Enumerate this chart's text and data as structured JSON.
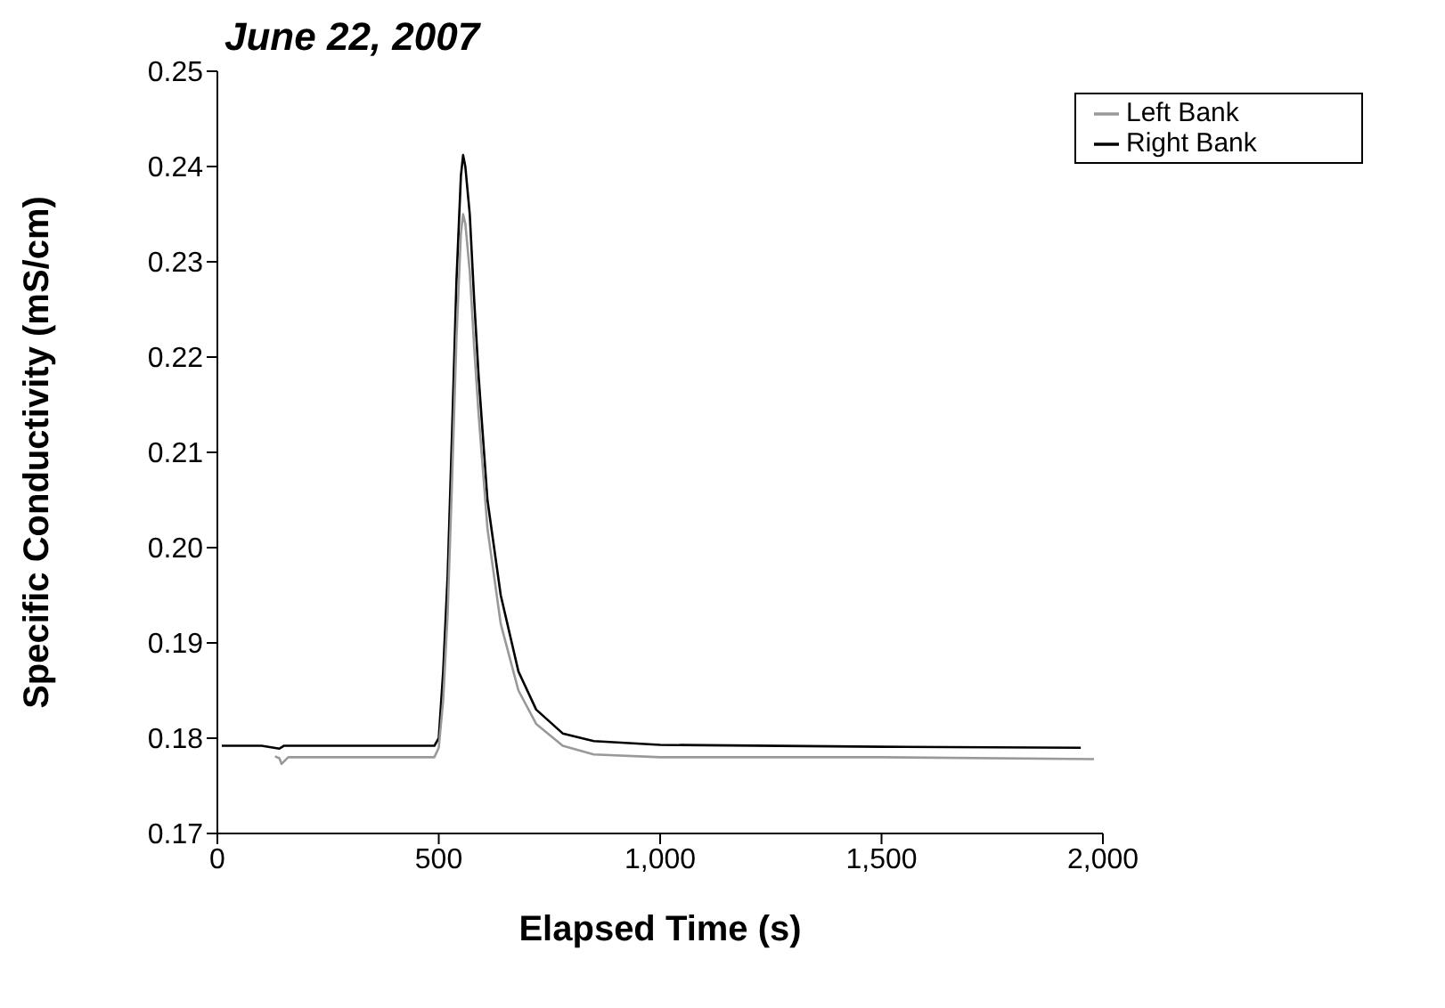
{
  "chart_data": {
    "type": "line",
    "title": "June 22, 2007",
    "xlabel": "Elapsed Time (s)",
    "ylabel": "Specific Conductivity (mS/cm)",
    "xlim": [
      0,
      2000
    ],
    "xticks": [
      {
        "value": 0,
        "label": "0"
      },
      {
        "value": 500,
        "label": "500"
      },
      {
        "value": 1000,
        "label": "1,000"
      },
      {
        "value": 1500,
        "label": "1,500"
      },
      {
        "value": 2000,
        "label": "2,000"
      }
    ],
    "ylim": [
      0.17,
      0.25
    ],
    "yticks": [
      {
        "value": 0.17,
        "label": "0.17"
      },
      {
        "value": 0.18,
        "label": "0.18"
      },
      {
        "value": 0.19,
        "label": "0.19"
      },
      {
        "value": 0.2,
        "label": "0.20"
      },
      {
        "value": 0.21,
        "label": "0.21"
      },
      {
        "value": 0.22,
        "label": "0.22"
      },
      {
        "value": 0.23,
        "label": "0.23"
      },
      {
        "value": 0.24,
        "label": "0.24"
      },
      {
        "value": 0.25,
        "label": "0.25"
      }
    ],
    "grid": false,
    "legend": "top right",
    "marker": "none",
    "line_style": "solid",
    "series": [
      {
        "name": "Right Bank",
        "color": "#000000",
        "x": [
          10,
          100,
          140,
          150,
          300,
          490,
          500,
          510,
          520,
          530,
          540,
          550,
          555,
          560,
          570,
          580,
          590,
          610,
          640,
          680,
          720,
          780,
          850,
          1000,
          1500,
          1950
        ],
        "values": [
          0.1792,
          0.1792,
          0.1789,
          0.1792,
          0.1792,
          0.1792,
          0.18,
          0.187,
          0.197,
          0.212,
          0.228,
          0.239,
          0.2412,
          0.24,
          0.235,
          0.226,
          0.218,
          0.205,
          0.195,
          0.187,
          0.183,
          0.1805,
          0.1797,
          0.1793,
          0.1791,
          0.179
        ]
      },
      {
        "name": "Left Bank",
        "color": "#999999",
        "x": [
          130,
          140,
          145,
          160,
          300,
          490,
          500,
          510,
          520,
          530,
          540,
          550,
          555,
          560,
          570,
          580,
          590,
          610,
          640,
          680,
          720,
          780,
          850,
          1000,
          1500,
          1980
        ],
        "values": [
          0.1781,
          0.1779,
          0.1773,
          0.178,
          0.178,
          0.178,
          0.179,
          0.184,
          0.193,
          0.207,
          0.222,
          0.233,
          0.235,
          0.234,
          0.229,
          0.221,
          0.214,
          0.202,
          0.192,
          0.185,
          0.1815,
          0.1792,
          0.1783,
          0.178,
          0.178,
          0.1778
        ]
      }
    ]
  }
}
